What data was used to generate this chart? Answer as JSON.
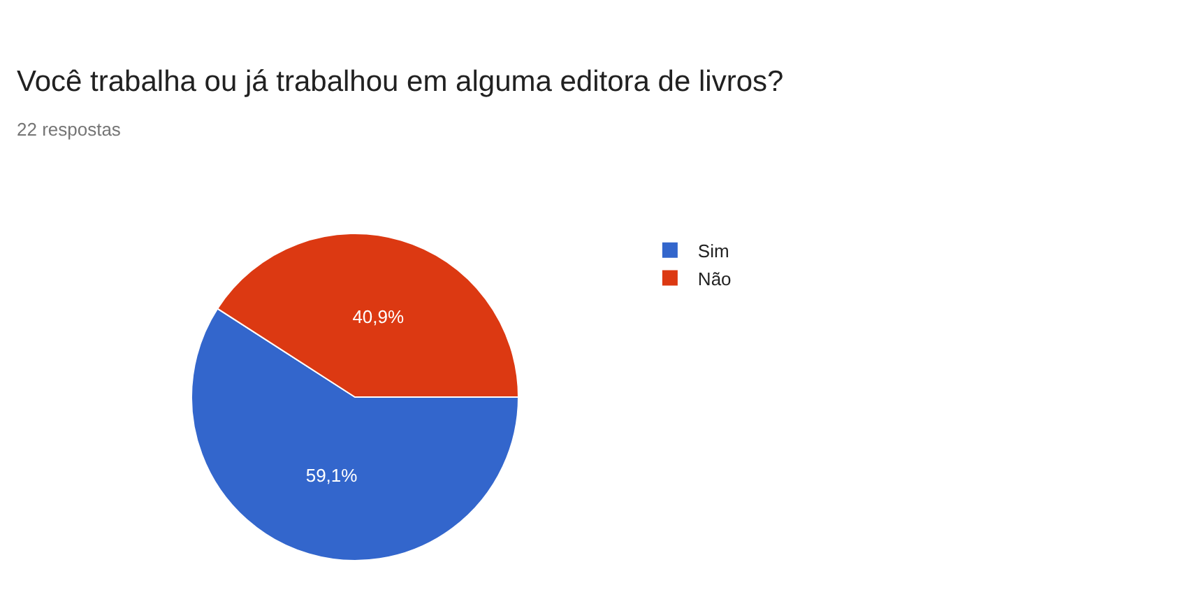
{
  "chart_data": {
    "type": "pie",
    "title": "Você trabalha ou já trabalhou em alguma editora de livros?",
    "subtitle": "22 respostas",
    "categories": [
      "Sim",
      "Não"
    ],
    "values": [
      59.1,
      40.9
    ],
    "value_labels": [
      "59,1%",
      "40,9%"
    ],
    "colors": [
      "#3366cc",
      "#dc3912"
    ],
    "legend": "top right"
  }
}
